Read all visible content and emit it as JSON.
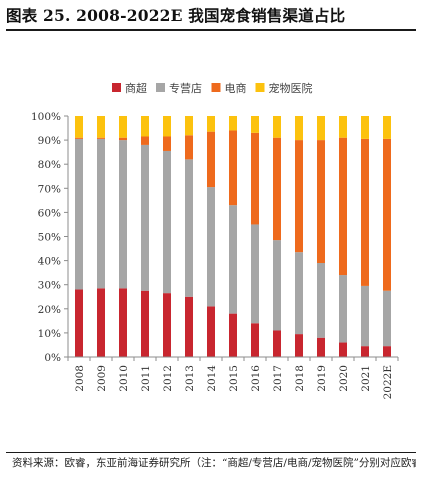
{
  "header": {
    "title": "图表 25. 2008-2022E 我国宠食销售渠道占比"
  },
  "footer": {
    "source": "资料来源：欧睿，东亚前海证券研究所（注：“商超/专营店/电商/宠物医院”分别对应欧睿数据的“Grocery Retailers/Pet Superstores/E-Commerce/Veterinary Clinics”）"
  },
  "chart_data": {
    "type": "bar",
    "stacked": true,
    "categories": [
      "2008",
      "2009",
      "2010",
      "2011",
      "2012",
      "2013",
      "2014",
      "2015",
      "2016",
      "2017",
      "2018",
      "2019",
      "2020",
      "2021",
      "2022E"
    ],
    "series": [
      {
        "name": "商超",
        "color": "#c8262f",
        "values": [
          28,
          28.5,
          28.5,
          27.5,
          26.5,
          25,
          21,
          18,
          14,
          11,
          9.5,
          8,
          6,
          4.5,
          4.5
        ]
      },
      {
        "name": "专营店",
        "color": "#a6a6a6",
        "values": [
          62.5,
          62,
          61.5,
          60.5,
          59,
          57,
          49.5,
          45,
          41,
          37.5,
          34,
          31,
          28,
          25,
          23
        ]
      },
      {
        "name": "电商",
        "color": "#ee6a1d",
        "values": [
          0.5,
          0.5,
          1,
          3.5,
          6,
          10,
          23,
          31,
          38,
          42.5,
          46.5,
          51,
          57,
          61,
          63
        ]
      },
      {
        "name": "宠物医院",
        "color": "#fcc20e",
        "values": [
          9,
          9,
          9,
          8.5,
          8.5,
          8,
          6.5,
          6,
          7,
          9,
          10,
          10,
          9,
          9.5,
          9.5
        ]
      }
    ],
    "y_ticks": [
      "0%",
      "10%",
      "20%",
      "30%",
      "40%",
      "50%",
      "60%",
      "70%",
      "80%",
      "90%",
      "100%"
    ],
    "ylim": [
      0,
      100
    ],
    "grid": false,
    "legend_position": "top"
  }
}
